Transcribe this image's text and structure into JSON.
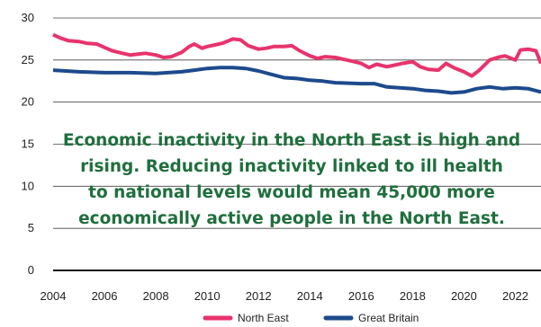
{
  "chart_data": {
    "type": "line",
    "title": "",
    "xlabel": "",
    "ylabel": "",
    "xlim": [
      2004,
      2023
    ],
    "ylim": [
      0,
      30
    ],
    "x_ticks": [
      "2004",
      "2006",
      "2008",
      "2010",
      "2012",
      "2014",
      "2016",
      "2018",
      "2020",
      "2022"
    ],
    "y_ticks": [
      "0",
      "5",
      "10",
      "15",
      "20",
      "25",
      "30"
    ],
    "grid": "horizontal",
    "legend_position": "bottom",
    "series": [
      {
        "name": "North East",
        "color": "#e8336d",
        "points": [
          [
            2004.0,
            28.0
          ],
          [
            2004.3,
            27.6
          ],
          [
            2004.6,
            27.3
          ],
          [
            2005.0,
            27.2
          ],
          [
            2005.3,
            27.0
          ],
          [
            2005.7,
            26.9
          ],
          [
            2006.0,
            26.5
          ],
          [
            2006.3,
            26.1
          ],
          [
            2006.7,
            25.8
          ],
          [
            2007.0,
            25.6
          ],
          [
            2007.3,
            25.7
          ],
          [
            2007.6,
            25.8
          ],
          [
            2008.0,
            25.6
          ],
          [
            2008.3,
            25.3
          ],
          [
            2008.6,
            25.4
          ],
          [
            2009.0,
            25.9
          ],
          [
            2009.3,
            26.6
          ],
          [
            2009.5,
            26.9
          ],
          [
            2009.8,
            26.4
          ],
          [
            2010.0,
            26.6
          ],
          [
            2010.3,
            26.8
          ],
          [
            2010.6,
            27.0
          ],
          [
            2011.0,
            27.5
          ],
          [
            2011.3,
            27.4
          ],
          [
            2011.6,
            26.7
          ],
          [
            2012.0,
            26.3
          ],
          [
            2012.3,
            26.4
          ],
          [
            2012.6,
            26.6
          ],
          [
            2013.0,
            26.6
          ],
          [
            2013.3,
            26.7
          ],
          [
            2013.6,
            26.1
          ],
          [
            2014.0,
            25.5
          ],
          [
            2014.3,
            25.2
          ],
          [
            2014.6,
            25.4
          ],
          [
            2015.0,
            25.3
          ],
          [
            2015.3,
            25.1
          ],
          [
            2015.6,
            24.9
          ],
          [
            2016.0,
            24.6
          ],
          [
            2016.3,
            24.1
          ],
          [
            2016.6,
            24.5
          ],
          [
            2017.0,
            24.2
          ],
          [
            2017.3,
            24.4
          ],
          [
            2017.6,
            24.6
          ],
          [
            2018.0,
            24.8
          ],
          [
            2018.3,
            24.2
          ],
          [
            2018.6,
            23.9
          ],
          [
            2019.0,
            23.8
          ],
          [
            2019.3,
            24.6
          ],
          [
            2019.6,
            24.1
          ],
          [
            2020.0,
            23.6
          ],
          [
            2020.3,
            23.1
          ],
          [
            2020.6,
            23.8
          ],
          [
            2021.0,
            25.0
          ],
          [
            2021.3,
            25.3
          ],
          [
            2021.6,
            25.5
          ],
          [
            2022.0,
            25.0
          ],
          [
            2022.2,
            26.2
          ],
          [
            2022.5,
            26.3
          ],
          [
            2022.8,
            26.1
          ],
          [
            2023.0,
            24.6
          ]
        ]
      },
      {
        "name": "Great Britain",
        "color": "#1d4a8c",
        "points": [
          [
            2004.0,
            23.8
          ],
          [
            2005.0,
            23.6
          ],
          [
            2006.0,
            23.5
          ],
          [
            2007.0,
            23.5
          ],
          [
            2008.0,
            23.4
          ],
          [
            2009.0,
            23.6
          ],
          [
            2009.5,
            23.8
          ],
          [
            2010.0,
            24.0
          ],
          [
            2010.5,
            24.1
          ],
          [
            2011.0,
            24.1
          ],
          [
            2011.5,
            24.0
          ],
          [
            2012.0,
            23.7
          ],
          [
            2012.5,
            23.3
          ],
          [
            2013.0,
            22.9
          ],
          [
            2013.5,
            22.8
          ],
          [
            2014.0,
            22.6
          ],
          [
            2014.5,
            22.5
          ],
          [
            2015.0,
            22.3
          ],
          [
            2016.0,
            22.2
          ],
          [
            2016.5,
            22.2
          ],
          [
            2017.0,
            21.8
          ],
          [
            2018.0,
            21.6
          ],
          [
            2018.5,
            21.4
          ],
          [
            2019.0,
            21.3
          ],
          [
            2019.5,
            21.1
          ],
          [
            2020.0,
            21.2
          ],
          [
            2020.5,
            21.6
          ],
          [
            2021.0,
            21.8
          ],
          [
            2021.5,
            21.6
          ],
          [
            2022.0,
            21.7
          ],
          [
            2022.5,
            21.6
          ],
          [
            2023.0,
            21.2
          ]
        ]
      }
    ],
    "annotation": {
      "lines": [
        "Economic inactivity in the North East is high and",
        "rising. Reducing inactivity linked to ill health",
        "to national levels would mean 45,000 more",
        "economically active people in the North East."
      ],
      "color": "#1f6f3d"
    }
  }
}
